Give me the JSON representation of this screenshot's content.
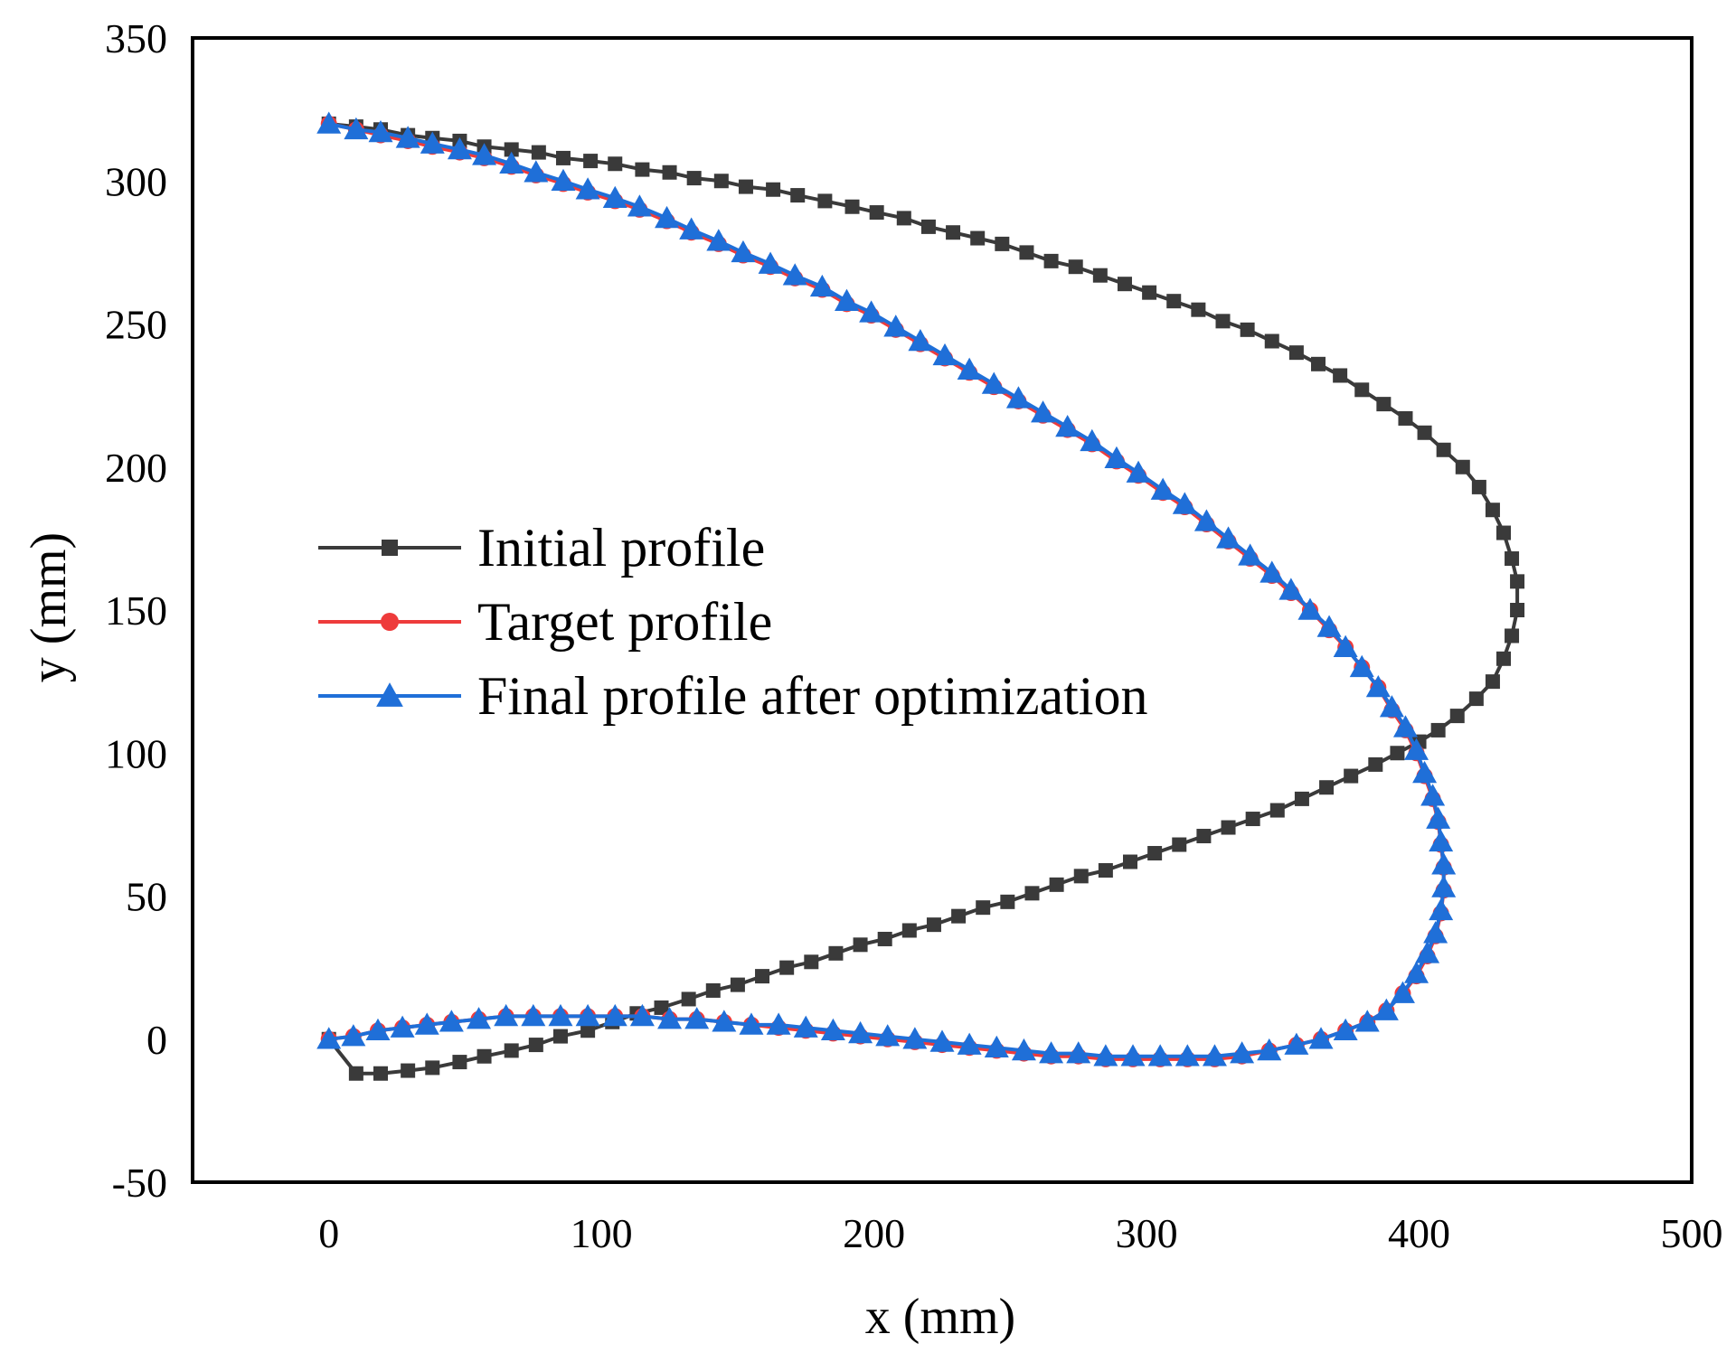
{
  "chart_data": {
    "type": "line",
    "title": "",
    "xlabel": "x (mm)",
    "ylabel": "y (mm)",
    "xlim": [
      -50,
      500
    ],
    "ylim": [
      -50,
      350
    ],
    "xticks": [
      0,
      100,
      200,
      300,
      400,
      500
    ],
    "yticks": [
      -50,
      0,
      50,
      100,
      150,
      200,
      250,
      300,
      350
    ],
    "grid": false,
    "legend_position": "center-left",
    "series": [
      {
        "name": "Initial profile",
        "color": "#3a3a3a",
        "marker": "square",
        "points": [
          [
            0,
            320
          ],
          [
            10,
            319
          ],
          [
            19,
            318
          ],
          [
            29,
            316
          ],
          [
            38,
            315
          ],
          [
            48,
            314
          ],
          [
            57,
            312
          ],
          [
            67,
            311
          ],
          [
            77,
            310
          ],
          [
            86,
            308
          ],
          [
            96,
            307
          ],
          [
            105,
            306
          ],
          [
            115,
            304
          ],
          [
            125,
            303
          ],
          [
            134,
            301
          ],
          [
            144,
            300
          ],
          [
            153,
            298
          ],
          [
            163,
            297
          ],
          [
            172,
            295
          ],
          [
            182,
            293
          ],
          [
            192,
            291
          ],
          [
            201,
            289
          ],
          [
            211,
            287
          ],
          [
            220,
            284
          ],
          [
            229,
            282
          ],
          [
            238,
            280
          ],
          [
            247,
            278
          ],
          [
            256,
            275
          ],
          [
            265,
            272
          ],
          [
            274,
            270
          ],
          [
            283,
            267
          ],
          [
            292,
            264
          ],
          [
            301,
            261
          ],
          [
            310,
            258
          ],
          [
            319,
            255
          ],
          [
            328,
            251
          ],
          [
            337,
            248
          ],
          [
            346,
            244
          ],
          [
            355,
            240
          ],
          [
            363,
            236
          ],
          [
            371,
            232
          ],
          [
            379,
            227
          ],
          [
            387,
            222
          ],
          [
            395,
            217
          ],
          [
            402,
            212
          ],
          [
            409,
            206
          ],
          [
            416,
            200
          ],
          [
            422,
            193
          ],
          [
            427,
            185
          ],
          [
            431,
            177
          ],
          [
            434,
            168
          ],
          [
            436,
            160
          ],
          [
            436,
            150
          ],
          [
            434,
            141
          ],
          [
            431,
            133
          ],
          [
            427,
            125
          ],
          [
            421,
            119
          ],
          [
            414,
            113
          ],
          [
            407,
            108
          ],
          [
            400,
            104
          ],
          [
            392,
            100
          ],
          [
            384,
            96
          ],
          [
            375,
            92
          ],
          [
            366,
            88
          ],
          [
            357,
            84
          ],
          [
            348,
            80
          ],
          [
            339,
            77
          ],
          [
            330,
            74
          ],
          [
            321,
            71
          ],
          [
            312,
            68
          ],
          [
            303,
            65
          ],
          [
            294,
            62
          ],
          [
            285,
            59
          ],
          [
            276,
            57
          ],
          [
            267,
            54
          ],
          [
            258,
            51
          ],
          [
            249,
            48
          ],
          [
            240,
            46
          ],
          [
            231,
            43
          ],
          [
            222,
            40
          ],
          [
            213,
            38
          ],
          [
            204,
            35
          ],
          [
            195,
            33
          ],
          [
            186,
            30
          ],
          [
            177,
            27
          ],
          [
            168,
            25
          ],
          [
            159,
            22
          ],
          [
            150,
            19
          ],
          [
            141,
            17
          ],
          [
            132,
            14
          ],
          [
            122,
            11
          ],
          [
            113,
            9
          ],
          [
            104,
            6
          ],
          [
            95,
            3
          ],
          [
            85,
            1
          ],
          [
            76,
            -2
          ],
          [
            67,
            -4
          ],
          [
            57,
            -6
          ],
          [
            48,
            -8
          ],
          [
            38,
            -10
          ],
          [
            29,
            -11
          ],
          [
            19,
            -12
          ],
          [
            10,
            -12
          ],
          [
            0,
            0
          ]
        ]
      },
      {
        "name": "Target profile",
        "color": "#ee3b3b",
        "marker": "circle",
        "points": [
          [
            0,
            320
          ],
          [
            10,
            318
          ],
          [
            19,
            316
          ],
          [
            29,
            314
          ],
          [
            38,
            312
          ],
          [
            48,
            310
          ],
          [
            57,
            308
          ],
          [
            67,
            305
          ],
          [
            76,
            302
          ],
          [
            86,
            299
          ],
          [
            95,
            296
          ],
          [
            105,
            293
          ],
          [
            114,
            290
          ],
          [
            124,
            286
          ],
          [
            133,
            282
          ],
          [
            143,
            278
          ],
          [
            152,
            274
          ],
          [
            162,
            270
          ],
          [
            171,
            266
          ],
          [
            181,
            262
          ],
          [
            190,
            257
          ],
          [
            199,
            253
          ],
          [
            208,
            248
          ],
          [
            217,
            243
          ],
          [
            226,
            238
          ],
          [
            235,
            233
          ],
          [
            244,
            228
          ],
          [
            253,
            223
          ],
          [
            262,
            218
          ],
          [
            271,
            213
          ],
          [
            280,
            208
          ],
          [
            289,
            202
          ],
          [
            297,
            197
          ],
          [
            306,
            191
          ],
          [
            314,
            186
          ],
          [
            322,
            180
          ],
          [
            330,
            174
          ],
          [
            338,
            168
          ],
          [
            346,
            162
          ],
          [
            353,
            156
          ],
          [
            360,
            150
          ],
          [
            367,
            143
          ],
          [
            373,
            137
          ],
          [
            379,
            130
          ],
          [
            385,
            123
          ],
          [
            390,
            115
          ],
          [
            395,
            108
          ],
          [
            399,
            100
          ],
          [
            402,
            92
          ],
          [
            405,
            84
          ],
          [
            407,
            76
          ],
          [
            408,
            68
          ],
          [
            409,
            60
          ],
          [
            409,
            52
          ],
          [
            408,
            44
          ],
          [
            406,
            36
          ],
          [
            403,
            29
          ],
          [
            399,
            22
          ],
          [
            394,
            16
          ],
          [
            388,
            10
          ],
          [
            381,
            6
          ],
          [
            373,
            3
          ],
          [
            364,
            0
          ],
          [
            355,
            -2
          ],
          [
            345,
            -4
          ],
          [
            335,
            -6
          ],
          [
            325,
            -7
          ],
          [
            315,
            -7
          ],
          [
            305,
            -7
          ],
          [
            295,
            -7
          ],
          [
            285,
            -7
          ],
          [
            275,
            -6
          ],
          [
            265,
            -6
          ],
          [
            255,
            -5
          ],
          [
            245,
            -4
          ],
          [
            235,
            -3
          ],
          [
            225,
            -2
          ],
          [
            215,
            -1
          ],
          [
            205,
            0
          ],
          [
            195,
            1
          ],
          [
            185,
            2
          ],
          [
            175,
            3
          ],
          [
            165,
            4
          ],
          [
            155,
            5
          ],
          [
            145,
            6
          ],
          [
            135,
            7
          ],
          [
            125,
            7
          ],
          [
            115,
            8
          ],
          [
            105,
            8
          ],
          [
            95,
            8
          ],
          [
            85,
            8
          ],
          [
            75,
            8
          ],
          [
            65,
            8
          ],
          [
            55,
            7
          ],
          [
            45,
            6
          ],
          [
            36,
            5
          ],
          [
            27,
            4
          ],
          [
            18,
            3
          ],
          [
            9,
            1
          ],
          [
            0,
            0
          ]
        ]
      },
      {
        "name": "Final profile after optimization",
        "color": "#1f6fd8",
        "marker": "triangle",
        "points": [
          [
            0,
            320
          ],
          [
            10,
            318
          ],
          [
            19,
            317
          ],
          [
            29,
            315
          ],
          [
            38,
            313
          ],
          [
            48,
            311
          ],
          [
            57,
            309
          ],
          [
            67,
            306
          ],
          [
            76,
            303
          ],
          [
            86,
            300
          ],
          [
            95,
            297
          ],
          [
            105,
            294
          ],
          [
            114,
            291
          ],
          [
            124,
            287
          ],
          [
            133,
            283
          ],
          [
            143,
            279
          ],
          [
            152,
            275
          ],
          [
            162,
            271
          ],
          [
            171,
            267
          ],
          [
            181,
            263
          ],
          [
            190,
            258
          ],
          [
            199,
            254
          ],
          [
            208,
            249
          ],
          [
            217,
            244
          ],
          [
            226,
            239
          ],
          [
            235,
            234
          ],
          [
            244,
            229
          ],
          [
            253,
            224
          ],
          [
            262,
            219
          ],
          [
            271,
            214
          ],
          [
            280,
            209
          ],
          [
            289,
            203
          ],
          [
            297,
            198
          ],
          [
            306,
            192
          ],
          [
            314,
            187
          ],
          [
            322,
            181
          ],
          [
            330,
            175
          ],
          [
            338,
            169
          ],
          [
            346,
            163
          ],
          [
            353,
            157
          ],
          [
            360,
            150
          ],
          [
            367,
            144
          ],
          [
            373,
            137
          ],
          [
            379,
            130
          ],
          [
            385,
            123
          ],
          [
            390,
            116
          ],
          [
            395,
            109
          ],
          [
            399,
            101
          ],
          [
            402,
            93
          ],
          [
            405,
            85
          ],
          [
            407,
            77
          ],
          [
            408,
            69
          ],
          [
            409,
            61
          ],
          [
            409,
            53
          ],
          [
            408,
            45
          ],
          [
            406,
            37
          ],
          [
            403,
            30
          ],
          [
            399,
            23
          ],
          [
            394,
            16
          ],
          [
            388,
            10
          ],
          [
            381,
            6
          ],
          [
            373,
            3
          ],
          [
            364,
            0
          ],
          [
            355,
            -2
          ],
          [
            345,
            -4
          ],
          [
            335,
            -5
          ],
          [
            325,
            -6
          ],
          [
            315,
            -6
          ],
          [
            305,
            -6
          ],
          [
            295,
            -6
          ],
          [
            285,
            -6
          ],
          [
            275,
            -5
          ],
          [
            265,
            -5
          ],
          [
            255,
            -4
          ],
          [
            245,
            -3
          ],
          [
            235,
            -2
          ],
          [
            225,
            -1
          ],
          [
            215,
            0
          ],
          [
            205,
            1
          ],
          [
            195,
            2
          ],
          [
            185,
            3
          ],
          [
            175,
            4
          ],
          [
            165,
            5
          ],
          [
            155,
            5
          ],
          [
            145,
            6
          ],
          [
            135,
            7
          ],
          [
            125,
            7
          ],
          [
            115,
            8
          ],
          [
            105,
            8
          ],
          [
            95,
            8
          ],
          [
            85,
            8
          ],
          [
            75,
            8
          ],
          [
            65,
            8
          ],
          [
            55,
            7
          ],
          [
            45,
            6
          ],
          [
            36,
            5
          ],
          [
            27,
            4
          ],
          [
            18,
            3
          ],
          [
            9,
            1
          ],
          [
            0,
            0
          ]
        ]
      }
    ]
  }
}
